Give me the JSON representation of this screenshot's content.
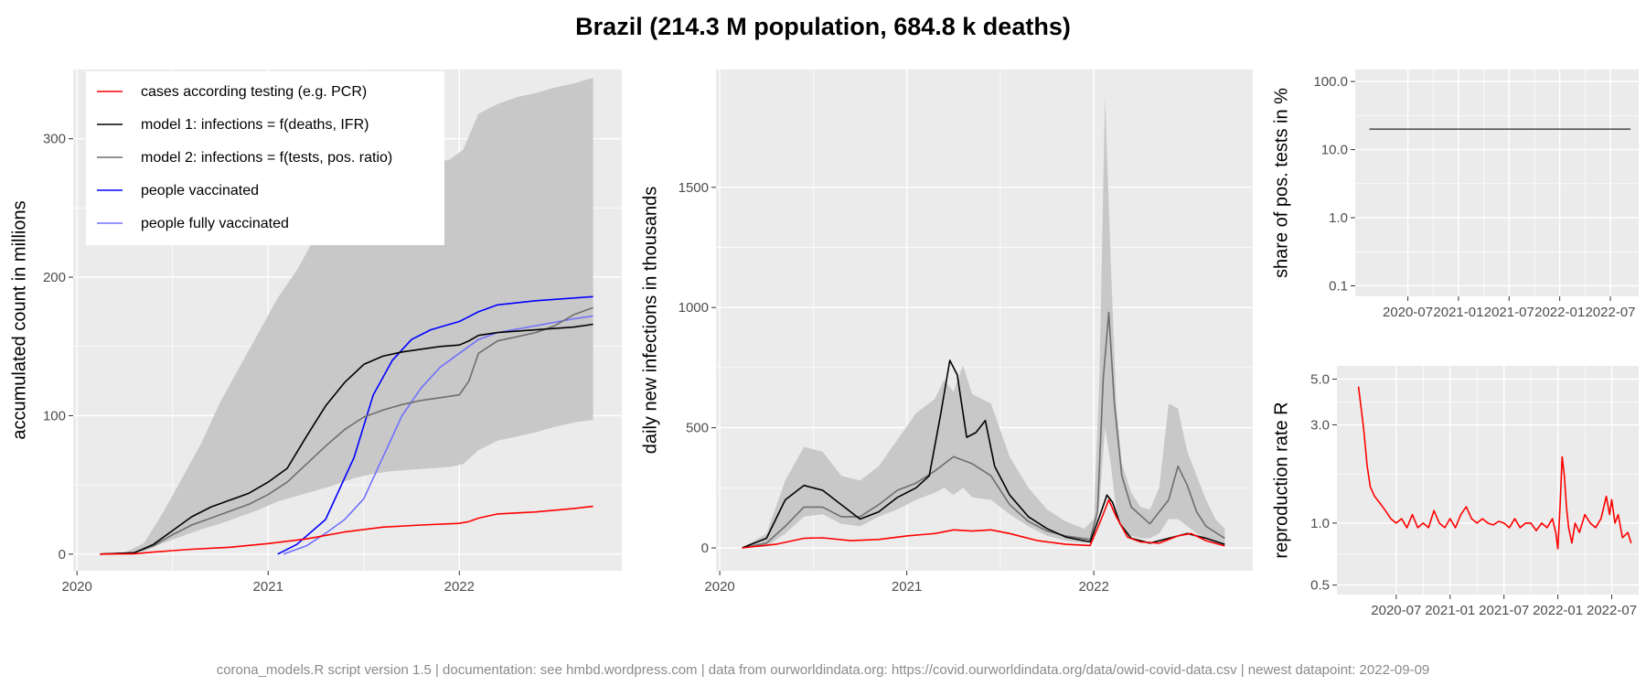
{
  "title": "Brazil (214.3 M population, 684.8 k deaths)",
  "footer": "corona_models.R script version 1.5 | documentation: see hmbd.wordpress.com | data from ourworldindata.org: https://covid.ourworldindata.org/data/owid-covid-data.csv | newest datapoint: 2022-09-09",
  "colors": {
    "panel_bg": "#ebebeb",
    "grid": "#ffffff",
    "band": "#c8c8c8",
    "cases": "#ff0000",
    "model1": "#000000",
    "model2": "#6e6e6e",
    "vaccinated": "#0000ff",
    "fully_vaccinated": "#7070ff"
  },
  "chart_data": [
    {
      "id": "accumulated",
      "type": "line",
      "title": "",
      "xlabel": "",
      "ylabel": "accumulated count in millions",
      "x_ticks": [
        "2020",
        "2021",
        "2022"
      ],
      "x_tick_values": [
        2020.0,
        2021.0,
        2022.0
      ],
      "xlim": [
        2019.98,
        2022.85
      ],
      "ylim": [
        -12,
        350
      ],
      "y_ticks": [
        0,
        100,
        200,
        300
      ],
      "y_tick_labels": [
        "0",
        "100",
        "200",
        "300"
      ],
      "grid": true,
      "legend_position": "top-left",
      "legend": [
        {
          "label": "cases according testing (e.g. PCR)",
          "color": "#ff0000"
        },
        {
          "label": "model 1: infections = f(deaths, IFR)",
          "color": "#000000"
        },
        {
          "label": "model 2: infections = f(tests, pos. ratio)",
          "color": "#6e6e6e"
        },
        {
          "label": "people vaccinated",
          "color": "#0000ff"
        },
        {
          "label": "people fully vaccinated",
          "color": "#7070ff"
        }
      ],
      "band": {
        "x": [
          2020.12,
          2020.25,
          2020.35,
          2020.45,
          2020.55,
          2020.65,
          2020.75,
          2020.85,
          2020.95,
          2021.05,
          2021.15,
          2021.25,
          2021.35,
          2021.45,
          2021.55,
          2021.65,
          2021.75,
          2021.85,
          2021.95,
          2022.02,
          2022.06,
          2022.1,
          2022.2,
          2022.3,
          2022.4,
          2022.5,
          2022.6,
          2022.7
        ],
        "upper": [
          0,
          1,
          8,
          30,
          55,
          80,
          110,
          135,
          160,
          185,
          205,
          230,
          250,
          262,
          268,
          272,
          278,
          282,
          285,
          292,
          305,
          318,
          325,
          330,
          333,
          337,
          340,
          344
        ],
        "lower": [
          0,
          0,
          2,
          8,
          13,
          18,
          22,
          27,
          32,
          38,
          42,
          46,
          50,
          55,
          58,
          60,
          61,
          62,
          63,
          65,
          70,
          75,
          82,
          85,
          88,
          92,
          95,
          97
        ]
      },
      "series": [
        {
          "name": "cases according testing (e.g. PCR)",
          "color": "#ff0000",
          "x": [
            2020.12,
            2020.3,
            2020.4,
            2020.5,
            2020.6,
            2020.8,
            2021.0,
            2021.2,
            2021.4,
            2021.6,
            2021.8,
            2022.0,
            2022.05,
            2022.1,
            2022.2,
            2022.4,
            2022.6,
            2022.7
          ],
          "y": [
            0,
            0.3,
            1.5,
            2.5,
            3.5,
            5,
            7.6,
            11,
            16,
            19.5,
            21,
            22.2,
            23.5,
            26,
            29,
            30.5,
            33,
            34.5
          ]
        },
        {
          "name": "model 1: infections = f(deaths, IFR)",
          "color": "#000000",
          "x": [
            2020.12,
            2020.3,
            2020.4,
            2020.5,
            2020.6,
            2020.7,
            2020.8,
            2020.9,
            2021.0,
            2021.1,
            2021.2,
            2021.3,
            2021.4,
            2021.5,
            2021.6,
            2021.7,
            2021.8,
            2021.9,
            2022.0,
            2022.05,
            2022.1,
            2022.2,
            2022.4,
            2022.6,
            2022.7
          ],
          "y": [
            0,
            1,
            7,
            17,
            27,
            34,
            39,
            44,
            52,
            62,
            85,
            107,
            124,
            137,
            143,
            146,
            148,
            150,
            151,
            154,
            158,
            160,
            162,
            164,
            166
          ]
        },
        {
          "name": "model 2: infections = f(tests, pos. ratio)",
          "color": "#6e6e6e",
          "x": [
            2020.12,
            2020.3,
            2020.4,
            2020.5,
            2020.6,
            2020.7,
            2020.8,
            2020.9,
            2021.0,
            2021.1,
            2021.2,
            2021.3,
            2021.4,
            2021.5,
            2021.6,
            2021.7,
            2021.8,
            2021.9,
            2022.0,
            2022.05,
            2022.1,
            2022.2,
            2022.3,
            2022.4,
            2022.5,
            2022.6,
            2022.7
          ],
          "y": [
            0,
            1,
            6,
            14,
            21,
            26,
            31,
            36,
            43,
            52,
            65,
            78,
            90,
            99,
            104,
            108,
            111,
            113,
            115,
            125,
            145,
            154,
            157,
            160,
            165,
            173,
            178
          ]
        },
        {
          "name": "people vaccinated",
          "color": "#0000ff",
          "x": [
            2021.05,
            2021.15,
            2021.3,
            2021.45,
            2021.55,
            2021.65,
            2021.75,
            2021.85,
            2021.95,
            2022.0,
            2022.1,
            2022.2,
            2022.4,
            2022.6,
            2022.7
          ],
          "y": [
            0,
            7,
            25,
            70,
            115,
            140,
            155,
            162,
            166,
            168,
            175,
            180,
            183,
            185,
            186
          ]
        },
        {
          "name": "people fully vaccinated",
          "color": "#7070ff",
          "x": [
            2021.08,
            2021.2,
            2021.3,
            2021.4,
            2021.5,
            2021.6,
            2021.7,
            2021.8,
            2021.9,
            2022.0,
            2022.1,
            2022.2,
            2022.4,
            2022.6,
            2022.7
          ],
          "y": [
            0,
            6,
            15,
            25,
            40,
            70,
            100,
            120,
            135,
            145,
            155,
            160,
            165,
            170,
            172
          ]
        }
      ]
    },
    {
      "id": "daily",
      "type": "line",
      "title": "",
      "xlabel": "",
      "ylabel": "daily new infections in thousands",
      "x_ticks": [
        "2020",
        "2021",
        "2022"
      ],
      "x_tick_values": [
        2020.0,
        2021.0,
        2022.0
      ],
      "xlim": [
        2019.98,
        2022.85
      ],
      "ylim": [
        -95,
        1990
      ],
      "y_ticks": [
        0,
        500,
        1000,
        1500
      ],
      "y_tick_labels": [
        "0",
        "500",
        "1000",
        "1500"
      ],
      "grid": true,
      "band": {
        "x": [
          2020.12,
          2020.25,
          2020.35,
          2020.45,
          2020.55,
          2020.65,
          2020.75,
          2020.85,
          2020.95,
          2021.05,
          2021.15,
          2021.2,
          2021.25,
          2021.3,
          2021.35,
          2021.45,
          2021.55,
          2021.65,
          2021.75,
          2021.85,
          2021.95,
          2022.0,
          2022.03,
          2022.06,
          2022.09,
          2022.12,
          2022.15,
          2022.2,
          2022.25,
          2022.3,
          2022.35,
          2022.4,
          2022.45,
          2022.5,
          2022.55,
          2022.6,
          2022.65,
          2022.7
        ],
        "upper": [
          0,
          60,
          280,
          420,
          400,
          300,
          280,
          340,
          450,
          560,
          620,
          700,
          650,
          760,
          640,
          600,
          380,
          250,
          160,
          110,
          80,
          120,
          700,
          1880,
          1200,
          600,
          350,
          230,
          170,
          160,
          250,
          600,
          580,
          400,
          300,
          200,
          120,
          80
        ],
        "lower": [
          0,
          5,
          60,
          130,
          140,
          100,
          90,
          130,
          160,
          200,
          230,
          250,
          220,
          250,
          210,
          200,
          140,
          90,
          50,
          30,
          20,
          30,
          180,
          500,
          350,
          160,
          80,
          50,
          40,
          40,
          60,
          120,
          120,
          90,
          60,
          40,
          20,
          10
        ]
      },
      "series": [
        {
          "name": "cases according testing (e.g. PCR)",
          "color": "#ff0000",
          "x": [
            2020.12,
            2020.3,
            2020.45,
            2020.55,
            2020.7,
            2020.85,
            2021.0,
            2021.15,
            2021.25,
            2021.35,
            2021.45,
            2021.55,
            2021.7,
            2021.85,
            2021.98,
            2022.04,
            2022.08,
            2022.12,
            2022.18,
            2022.25,
            2022.35,
            2022.45,
            2022.52,
            2022.6,
            2022.7
          ],
          "y": [
            0,
            15,
            40,
            42,
            30,
            35,
            50,
            60,
            75,
            70,
            75,
            60,
            30,
            15,
            10,
            120,
            200,
            130,
            45,
            25,
            20,
            50,
            60,
            30,
            8
          ]
        },
        {
          "name": "model 1: infections = f(deaths, IFR)",
          "color": "#000000",
          "x": [
            2020.12,
            2020.25,
            2020.35,
            2020.45,
            2020.55,
            2020.65,
            2020.75,
            2020.85,
            2020.95,
            2021.05,
            2021.12,
            2021.18,
            2021.23,
            2021.27,
            2021.32,
            2021.37,
            2021.42,
            2021.47,
            2021.55,
            2021.65,
            2021.75,
            2021.85,
            2021.98,
            2022.03,
            2022.07,
            2022.1,
            2022.14,
            2022.2,
            2022.3,
            2022.4,
            2022.5,
            2022.6,
            2022.7
          ],
          "y": [
            0,
            40,
            200,
            260,
            240,
            180,
            120,
            150,
            210,
            250,
            300,
            550,
            780,
            720,
            460,
            480,
            530,
            340,
            220,
            130,
            80,
            45,
            25,
            130,
            220,
            190,
            100,
            40,
            20,
            40,
            60,
            40,
            15
          ]
        },
        {
          "name": "model 2: infections = f(tests, pos. ratio)",
          "color": "#6e6e6e",
          "x": [
            2020.12,
            2020.25,
            2020.35,
            2020.45,
            2020.55,
            2020.65,
            2020.75,
            2020.85,
            2020.95,
            2021.05,
            2021.15,
            2021.25,
            2021.35,
            2021.45,
            2021.55,
            2021.65,
            2021.75,
            2021.85,
            2021.98,
            2022.02,
            2022.05,
            2022.08,
            2022.11,
            2022.15,
            2022.2,
            2022.3,
            2022.4,
            2022.45,
            2022.5,
            2022.55,
            2022.6,
            2022.7
          ],
          "y": [
            0,
            20,
            90,
            170,
            170,
            130,
            130,
            180,
            240,
            270,
            320,
            380,
            350,
            300,
            180,
            110,
            70,
            50,
            35,
            150,
            700,
            980,
            600,
            300,
            170,
            100,
            200,
            340,
            260,
            150,
            90,
            40
          ]
        }
      ]
    },
    {
      "id": "pos_share",
      "type": "line",
      "title": "",
      "xlabel": "",
      "ylabel": "share of pos. tests in %",
      "y_scale": "log",
      "x_ticks": [
        "2020-07",
        "2021-01",
        "2021-07",
        "2022-01",
        "2022-07"
      ],
      "x_tick_values": [
        2020.5,
        2021.0,
        2021.5,
        2022.0,
        2022.5
      ],
      "xlim": [
        2019.98,
        2022.78
      ],
      "ylim": [
        0.07,
        150
      ],
      "y_ticks": [
        0.1,
        1.0,
        10.0,
        100.0
      ],
      "y_tick_labels": [
        "0.1",
        "1.0",
        "10.0",
        "100.0"
      ],
      "grid": true,
      "series": [
        {
          "name": "",
          "color": "#555555",
          "x": [
            2020.12,
            2022.7
          ],
          "y": [
            20,
            20
          ]
        }
      ]
    },
    {
      "id": "reproduction",
      "type": "line",
      "title": "",
      "xlabel": "",
      "ylabel": "reproduction rate R",
      "y_scale": "log",
      "x_ticks": [
        "2020-07",
        "2021-01",
        "2021-07",
        "2022-01",
        "2022-07"
      ],
      "x_tick_values": [
        2020.5,
        2021.0,
        2021.5,
        2022.0,
        2022.5
      ],
      "xlim": [
        2019.95,
        2022.75
      ],
      "ylim": [
        0.45,
        5.8
      ],
      "y_ticks": [
        0.5,
        1.0,
        3.0,
        5.0
      ],
      "y_tick_labels": [
        "0.5",
        "1.0",
        "3.0",
        "5.0"
      ],
      "grid": true,
      "series": [
        {
          "name": "",
          "color": "#ff0000",
          "x": [
            2020.15,
            2020.17,
            2020.2,
            2020.23,
            2020.26,
            2020.3,
            2020.35,
            2020.4,
            2020.45,
            2020.5,
            2020.55,
            2020.6,
            2020.65,
            2020.7,
            2020.75,
            2020.8,
            2020.85,
            2020.9,
            2020.95,
            2021.0,
            2021.05,
            2021.1,
            2021.15,
            2021.2,
            2021.25,
            2021.3,
            2021.35,
            2021.4,
            2021.45,
            2021.5,
            2021.55,
            2021.6,
            2021.65,
            2021.7,
            2021.75,
            2021.8,
            2021.85,
            2021.9,
            2021.95,
            2021.98,
            2022.0,
            2022.02,
            2022.04,
            2022.06,
            2022.08,
            2022.1,
            2022.13,
            2022.16,
            2022.2,
            2022.25,
            2022.3,
            2022.35,
            2022.4,
            2022.45,
            2022.48,
            2022.5,
            2022.53,
            2022.56,
            2022.6,
            2022.65,
            2022.68
          ],
          "y": [
            4.6,
            3.8,
            2.8,
            1.9,
            1.5,
            1.35,
            1.25,
            1.15,
            1.05,
            1.0,
            1.05,
            0.95,
            1.1,
            0.95,
            1.0,
            0.95,
            1.15,
            1.0,
            0.95,
            1.05,
            0.95,
            1.1,
            1.2,
            1.05,
            1.0,
            1.05,
            1.0,
            0.98,
            1.02,
            1.0,
            0.95,
            1.05,
            0.95,
            1.0,
            1.0,
            0.92,
            1.0,
            0.95,
            1.05,
            0.9,
            0.75,
            1.2,
            2.1,
            1.7,
            1.2,
            0.95,
            0.8,
            1.0,
            0.9,
            1.1,
            1.0,
            0.95,
            1.05,
            1.35,
            1.1,
            1.3,
            1.0,
            1.1,
            0.85,
            0.9,
            0.8
          ]
        }
      ]
    }
  ]
}
